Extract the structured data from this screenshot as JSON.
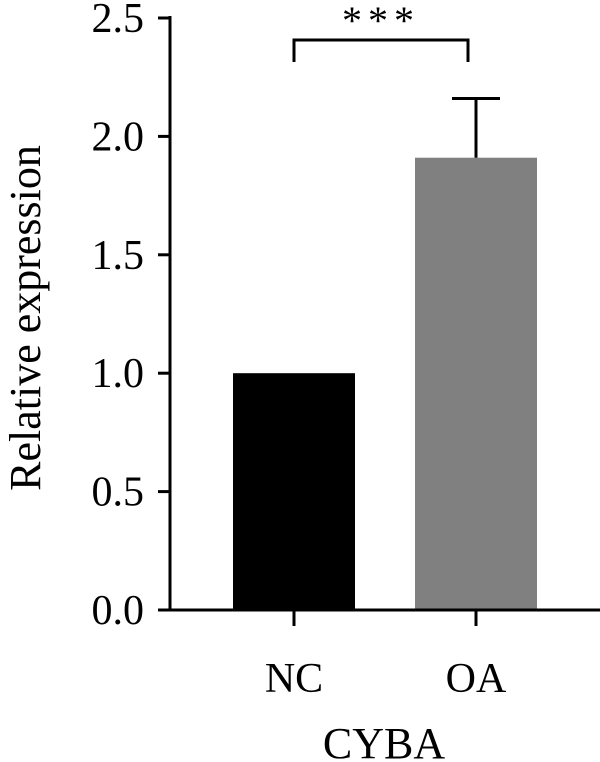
{
  "chart_data": {
    "type": "bar",
    "categories": [
      "NC",
      "OA"
    ],
    "values": [
      1.0,
      1.91
    ],
    "errors": [
      0,
      0.25
    ],
    "colors": [
      "#000000",
      "#808080"
    ],
    "ylabel": "Relative expression",
    "xlabel": "CYBA",
    "ylim": [
      0,
      2.5
    ],
    "yticks": [
      0.0,
      0.5,
      1.0,
      1.5,
      2.0,
      2.5
    ],
    "ytick_labels": [
      "0.0",
      "0.5",
      "1.0",
      "1.5",
      "2.0",
      "2.5"
    ],
    "grid": false,
    "legend": "none",
    "annotations": [
      {
        "type": "significance",
        "text": "***",
        "between": [
          "NC",
          "OA"
        ]
      }
    ]
  }
}
